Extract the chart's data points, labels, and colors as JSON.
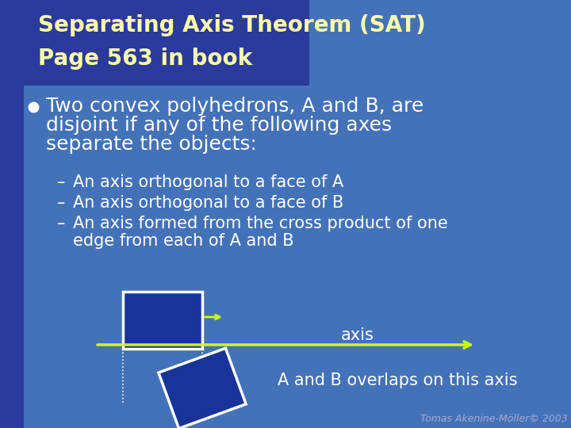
{
  "title_line1": "Separating Axis Theorem (SAT)",
  "title_line2": "Page 563 in book",
  "title_color": "#FFFFAA",
  "title_fontsize": 20,
  "title_bg_color": "#2B3A9B",
  "slide_bg_color": "#4472B8",
  "bullet_text_lines": [
    "Two convex polyhedrons, A and B, are",
    "disjoint if any of the following axes",
    "separate the objects:"
  ],
  "bullet_color": "#FFFFFF",
  "bullet_fontsize": 18,
  "sub_bullets": [
    [
      "An axis orthogonal to a face of A"
    ],
    [
      "An axis orthogonal to a face of B"
    ],
    [
      "An axis formed from the cross product of one",
      "edge from each of A and B"
    ]
  ],
  "sub_bullet_color": "#FFFFFF",
  "sub_bullet_fontsize": 15,
  "axis_color": "#CCFF00",
  "rect_A_color": "#1A3399",
  "rect_A_border": "#FFFFFF",
  "rect_B_color": "#1A3399",
  "rect_B_border": "#FFFFFF",
  "axis_label": "axis",
  "overlap_label": "A and B overlaps on this axis",
  "label_color": "#FFFFFF",
  "label_fontsize": 15,
  "footer_text": "Tomas Akenine-Möller© 2003",
  "footer_color": "#AAAACC",
  "footer_fontsize": 9,
  "left_bar_color": "#2B3A9B",
  "left_bar_width": 30
}
